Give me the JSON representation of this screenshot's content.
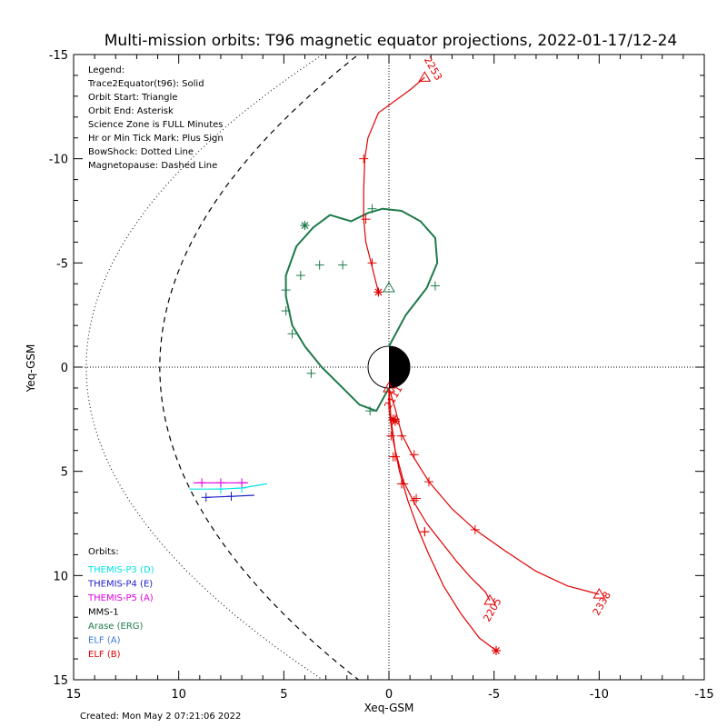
{
  "title": "Multi-mission orbits: T96 magnetic equator projections, 2022-01-17/12-24",
  "created": "Created: Mon May  2 07:21:06 2022",
  "legend_lines": [
    "Legend:",
    "Trace2Equator(t96): Solid",
    "Orbit Start: Triangle",
    "Orbit End: Asterisk",
    "Science Zone is FULL Minutes",
    "Hr or Min Tick Mark: Plus Sign",
    "BowShock: Dotted Line",
    "Magnetopause: Dashed Line"
  ],
  "orbits_title": "Orbits:",
  "orbit_legend": [
    {
      "label": "THEMIS-P3 (D)",
      "color": "#00e5e5"
    },
    {
      "label": "THEMIS-P4 (E)",
      "color": "#1c1cc8"
    },
    {
      "label": "THEMIS-P5 (A)",
      "color": "#e000e0"
    },
    {
      "label": "MMS-1",
      "color": "#000000"
    },
    {
      "label": "Arase (ERG)",
      "color": "#1e7a4a"
    },
    {
      "label": "ELF (A)",
      "color": "#3a78d0"
    },
    {
      "label": "ELF (B)",
      "color": "#e00000"
    }
  ],
  "chart_data": {
    "type": "scatter",
    "xlabel": "Xeq-GSM",
    "ylabel": "Yeq-GSM",
    "xlim": [
      15,
      -15
    ],
    "ylim": [
      -15,
      15
    ],
    "xticks": [
      "15",
      "10",
      "5",
      "0",
      "-5",
      "-10",
      "-15"
    ],
    "yticks": [
      "-15",
      "-10",
      "-5",
      "0",
      "5",
      "10",
      "15"
    ],
    "series": [
      {
        "name": "THEMIS-P3 (D)",
        "color": "#00e5e5",
        "x": [
          9.5,
          8.0,
          7.0,
          5.8
        ],
        "y": [
          5.85,
          5.85,
          5.8,
          5.6
        ],
        "ticks": [
          [
            8.0,
            5.85
          ],
          [
            7.0,
            5.8
          ]
        ]
      },
      {
        "name": "THEMIS-P4 (E)",
        "color": "#1c1cc8",
        "x": [
          8.7,
          7.5,
          6.4
        ],
        "y": [
          6.25,
          6.2,
          6.15
        ],
        "ticks": [
          [
            8.7,
            6.25
          ],
          [
            7.5,
            6.2
          ]
        ]
      },
      {
        "name": "THEMIS-P5 (A)",
        "color": "#e000e0",
        "x": [
          9.3,
          8.0,
          6.7
        ],
        "y": [
          5.55,
          5.55,
          5.55
        ],
        "ticks": [
          [
            8.9,
            5.55
          ],
          [
            8.0,
            5.55
          ],
          [
            7.0,
            5.55
          ]
        ]
      },
      {
        "name": "Arase (ERG)",
        "color": "#1e7a4a",
        "x": [
          0.0,
          -0.8,
          -1.8,
          -2.3,
          -2.2,
          -1.5,
          -0.6,
          0.3,
          1.0,
          1.8,
          2.8,
          3.6,
          4.4,
          4.9,
          4.9,
          4.6,
          4.0,
          3.2,
          2.3,
          1.4,
          0.6,
          0.0
        ],
        "y": [
          -1.0,
          -2.5,
          -3.8,
          -5.0,
          -6.2,
          -7.0,
          -7.5,
          -7.6,
          -7.4,
          -7.0,
          -7.3,
          -6.7,
          -5.8,
          -4.4,
          -3.4,
          -2.0,
          -1.0,
          0.0,
          0.9,
          1.8,
          2.1,
          1.0
        ],
        "start": [
          0.0,
          -3.8
        ],
        "end": [
          4.0,
          -6.8
        ],
        "ticks": [
          [
            -2.2,
            -3.9
          ],
          [
            2.2,
            -4.9
          ],
          [
            0.8,
            -7.6
          ],
          [
            3.3,
            -4.9
          ],
          [
            4.2,
            -4.4
          ],
          [
            4.9,
            -3.7
          ],
          [
            4.9,
            -2.7
          ],
          [
            4.6,
            -1.6
          ],
          [
            3.7,
            0.3
          ],
          [
            0.9,
            2.1
          ]
        ]
      },
      {
        "name": "ELF (B) 2253",
        "color": "#e00000",
        "x": [
          0.5,
          0.8,
          1.1,
          1.2,
          1.2,
          1.15,
          1.0,
          0.5,
          -1.0,
          -1.7
        ],
        "y": [
          -3.6,
          -4.8,
          -6.0,
          -7.1,
          -8.5,
          -10.0,
          -11.0,
          -12.2,
          -13.3,
          -13.9
        ],
        "start": [
          -1.7,
          -13.9
        ],
        "end": [
          0.5,
          -3.6
        ],
        "label": "2253",
        "ticks": [
          [
            0.8,
            -5.0
          ],
          [
            1.1,
            -7.1
          ],
          [
            1.2,
            -10.0
          ]
        ]
      },
      {
        "name": "ELF (B) 2205",
        "color": "#e00000",
        "x": [
          0.0,
          -0.1,
          -0.3,
          -0.7,
          -1.2,
          -1.8,
          -2.5,
          -3.2,
          -3.9,
          -4.6,
          -4.8
        ],
        "y": [
          1.0,
          2.5,
          4.0,
          5.5,
          6.5,
          7.5,
          8.4,
          9.3,
          10.1,
          10.8,
          11.2
        ],
        "start": [
          -4.8,
          11.2
        ],
        "end": [
          -0.2,
          2.5
        ],
        "label": "2205",
        "ticks": [
          [
            -0.3,
            4.3
          ],
          [
            -0.7,
            5.6
          ],
          [
            -1.2,
            6.4
          ],
          [
            -1.7,
            7.9
          ]
        ]
      },
      {
        "name": "ELF (B) 2338",
        "color": "#e00000",
        "x": [
          0.0,
          -0.3,
          -0.6,
          -1.1,
          -1.9,
          -3.0,
          -4.1,
          -5.5,
          -7.0,
          -8.5,
          -10.0
        ],
        "y": [
          1.0,
          2.0,
          3.2,
          4.2,
          5.5,
          6.8,
          7.8,
          8.8,
          9.8,
          10.5,
          10.9
        ],
        "start": [
          -10.0,
          10.9
        ],
        "end": [
          -0.3,
          2.6
        ],
        "label": "2338",
        "ticks": [
          [
            -0.6,
            3.3
          ],
          [
            -1.2,
            4.2
          ],
          [
            -1.9,
            5.5
          ],
          [
            -4.1,
            7.8
          ]
        ]
      },
      {
        "name": "ELF (B) 2111",
        "color": "#e00000",
        "x": [
          0.0,
          0.0,
          -0.2,
          -0.5,
          -0.9,
          -1.4,
          -1.9,
          -2.6,
          -3.4,
          -4.3,
          -5.1
        ],
        "y": [
          1.0,
          2.0,
          3.5,
          5.0,
          6.4,
          7.8,
          9.0,
          10.5,
          11.8,
          13.0,
          13.6
        ],
        "start": [
          0.0,
          1.0
        ],
        "end": [
          -5.1,
          13.6
        ],
        "label": "2111",
        "ticks": [
          [
            -0.1,
            3.3
          ],
          [
            -0.2,
            4.3
          ],
          [
            -0.6,
            5.6
          ],
          [
            -1.3,
            6.3
          ],
          [
            -1.7,
            7.9
          ],
          [
            -0.3,
            2.5
          ]
        ]
      }
    ],
    "bowshock": {
      "style": "dotted",
      "color": "#000000"
    },
    "magnetopause": {
      "style": "dashed",
      "color": "#000000"
    },
    "grid": false,
    "zero_lines": "dotted"
  }
}
